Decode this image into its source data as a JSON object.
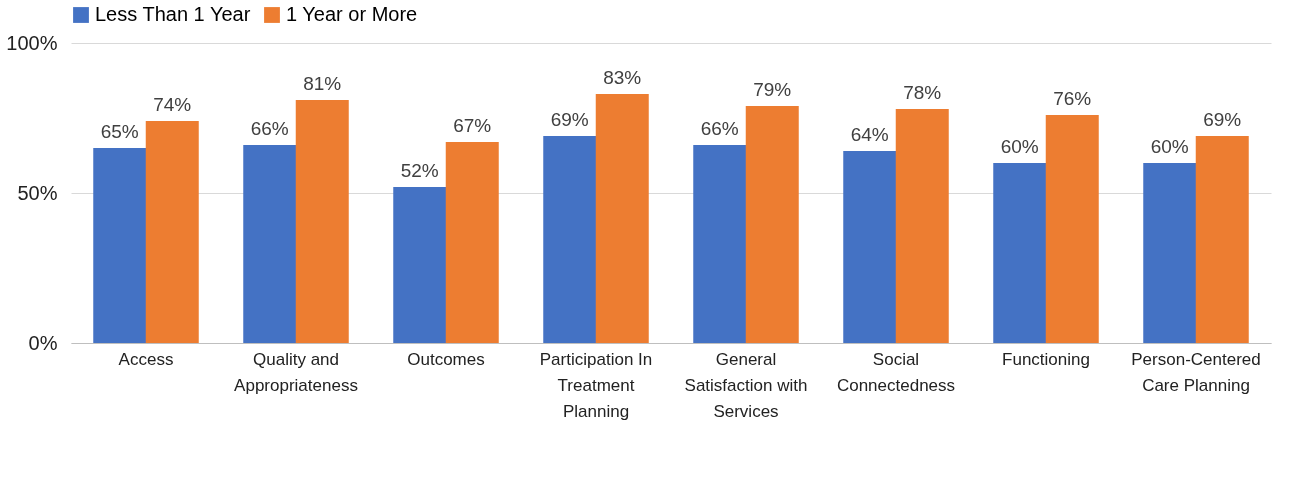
{
  "chart_data": {
    "type": "bar",
    "categories": [
      "Access",
      "Quality and Appropriateness",
      "Outcomes",
      "Participation In Treatment Planning",
      "General Satisfaction with Services",
      "Social Connectedness",
      "Functioning",
      "Person-Centered Care Planning"
    ],
    "series": [
      {
        "name": "Less Than 1 Year",
        "color": "#4472c4",
        "values": [
          65,
          66,
          52,
          69,
          66,
          64,
          60,
          60
        ],
        "value_labels": [
          "65%",
          "66%",
          "52%",
          "69%",
          "66%",
          "64%",
          "60%",
          "60%"
        ]
      },
      {
        "name": "1 Year or More",
        "color": "#ed7d31",
        "values": [
          74,
          81,
          67,
          83,
          79,
          78,
          76,
          69
        ],
        "value_labels": [
          "74%",
          "81%",
          "67%",
          "83%",
          "79%",
          "78%",
          "76%",
          "69%"
        ]
      }
    ],
    "ylim": [
      0,
      100
    ],
    "yticks": [
      {
        "value": 0,
        "label": "0%"
      },
      {
        "value": 50,
        "label": "50%"
      },
      {
        "value": 100,
        "label": "100%"
      }
    ],
    "grid": "y",
    "legend": "top"
  }
}
